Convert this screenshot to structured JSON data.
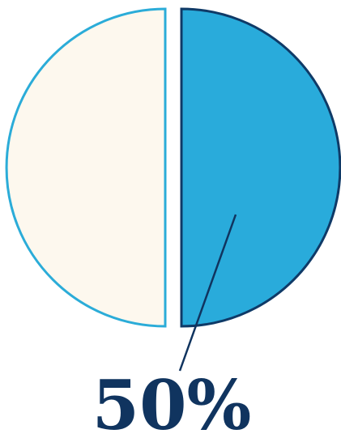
{
  "chart_data": {
    "type": "pie",
    "slices": [
      {
        "value": 50,
        "highlighted": false,
        "fill": "#FDF8EE",
        "stroke": "#2BACD8"
      },
      {
        "value": 50,
        "highlighted": true,
        "fill": "#29ABDB",
        "stroke": "#0F3A67"
      }
    ],
    "data_label": "50%",
    "label_color": "#10345F",
    "leader_color": "#10345F"
  }
}
